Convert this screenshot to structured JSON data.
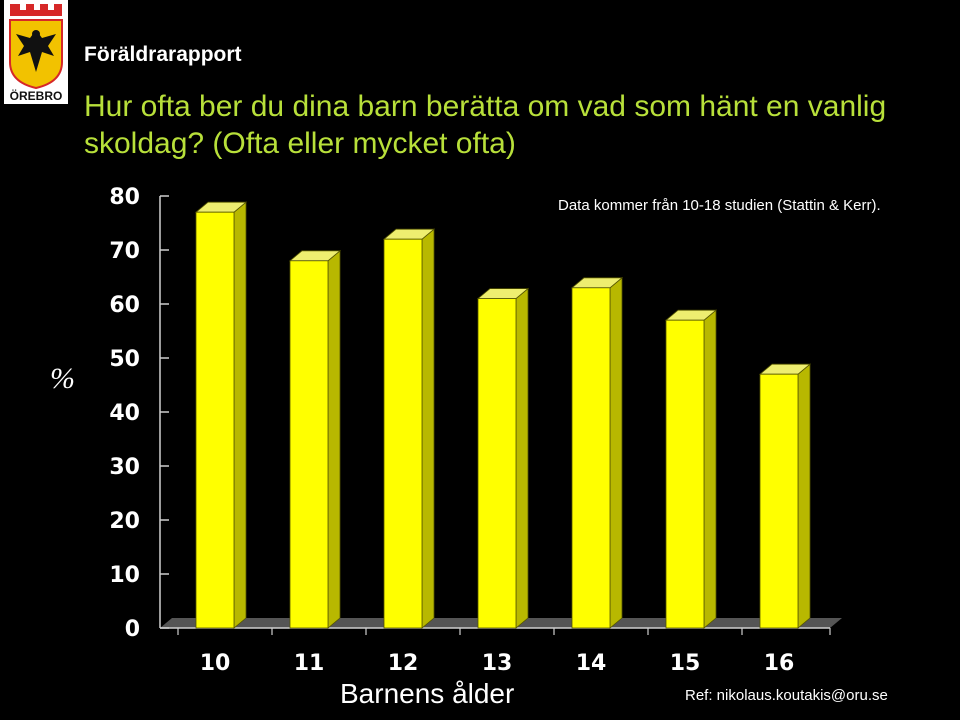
{
  "header": {
    "brand": "Föräldrarapport",
    "logo_text": "ÖREBRO",
    "question": "Hur ofta ber du dina barn berätta om vad som hänt en vanlig skoldag? (Ofta eller mycket ofta)"
  },
  "note": "Data kommer från 10-18 studien (Stattin & Kerr).",
  "footer": {
    "ref": "Ref: nikolaus.koutakis@oru.se"
  },
  "colors": {
    "background": "#000000",
    "title_green": "#b8e03a",
    "bar_front": "#ffff00",
    "bar_side": "#b8b800",
    "bar_top": "#eeee70",
    "logo_red": "#d62828",
    "logo_gold": "#f2c200"
  },
  "chart_data": {
    "type": "bar",
    "title": "Hur ofta ber du dina barn berätta om vad som hänt en vanlig skoldag? (Ofta eller mycket ofta)",
    "xlabel": "Barnens ålder",
    "ylabel": "%",
    "categories": [
      "10",
      "11",
      "12",
      "13",
      "14",
      "15",
      "16"
    ],
    "values": [
      77,
      68,
      72,
      61,
      63,
      57,
      47
    ],
    "ylim": [
      0,
      80
    ],
    "yticks": [
      "0",
      "10",
      "20",
      "30",
      "40",
      "50",
      "60",
      "70",
      "80"
    ],
    "grid": false,
    "style": "3d"
  }
}
